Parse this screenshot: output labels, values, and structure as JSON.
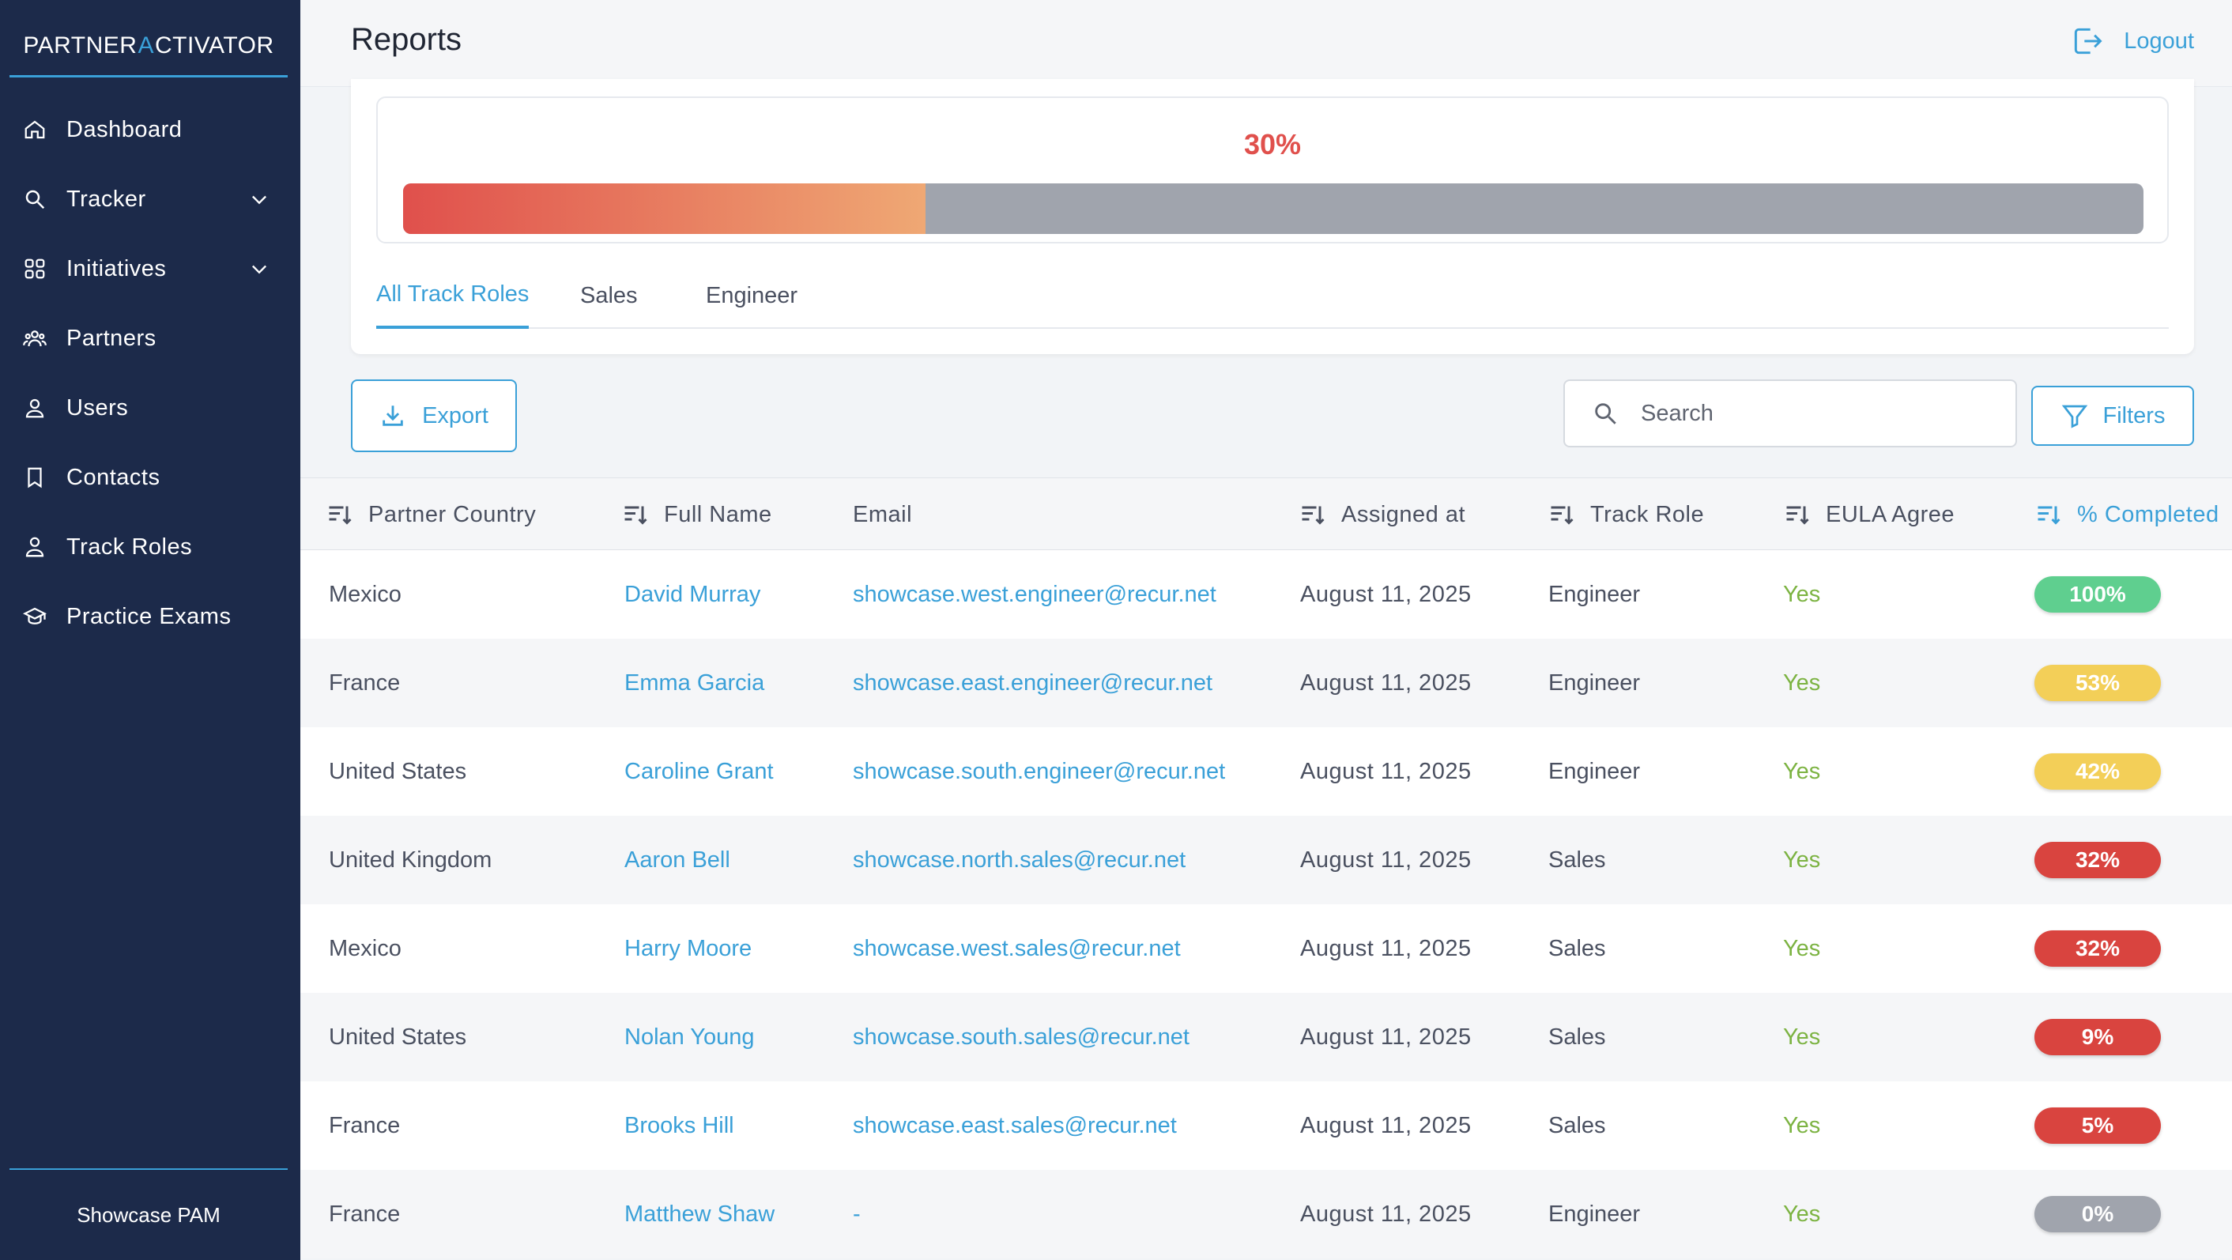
{
  "sidebar": {
    "brand": {
      "part1": "PARTNER ",
      "rocket_letter": "A",
      "part2": "CTIVATOR"
    },
    "items": [
      {
        "label": "Dashboard",
        "icon": "home-icon",
        "expandable": false
      },
      {
        "label": "Tracker",
        "icon": "search-icon",
        "expandable": true
      },
      {
        "label": "Initiatives",
        "icon": "grid-icon",
        "expandable": true
      },
      {
        "label": "Partners",
        "icon": "group-icon",
        "expandable": false
      },
      {
        "label": "Users",
        "icon": "user-icon",
        "expandable": false
      },
      {
        "label": "Contacts",
        "icon": "bookmark-icon",
        "expandable": false
      },
      {
        "label": "Track Roles",
        "icon": "user-roles-icon",
        "expandable": false
      },
      {
        "label": "Practice Exams",
        "icon": "graduation-cap-icon",
        "expandable": false
      }
    ],
    "footer": "Showcase PAM"
  },
  "header": {
    "title": "Reports",
    "logout_label": "Logout"
  },
  "progress": {
    "label": "30%",
    "value": 0.3
  },
  "tabs": [
    {
      "label": "All Track Roles",
      "active": true
    },
    {
      "label": "Sales",
      "active": false
    },
    {
      "label": "Engineer",
      "active": false
    }
  ],
  "toolbar": {
    "export_label": "Export",
    "search_placeholder": "Search",
    "filters_label": "Filters"
  },
  "table": {
    "columns": [
      {
        "label": "Partner Country",
        "sortable": true
      },
      {
        "label": "Full Name",
        "sortable": true
      },
      {
        "label": "Email",
        "sortable": false
      },
      {
        "label": "Assigned at",
        "sortable": true
      },
      {
        "label": "Track Role",
        "sortable": true
      },
      {
        "label": "EULA Agree",
        "sortable": true
      },
      {
        "label": "% Completed",
        "sortable": true
      }
    ],
    "rows": [
      {
        "country": "Mexico",
        "name": "David Murray",
        "email": "showcase.west.engineer@recur.net",
        "assigned": "August 11, 2025",
        "role": "Engineer",
        "eula": "Yes",
        "completed": "100%",
        "status_color": "#5fcf8f"
      },
      {
        "country": "France",
        "name": "Emma Garcia",
        "email": "showcase.east.engineer@recur.net",
        "assigned": "August 11, 2025",
        "role": "Engineer",
        "eula": "Yes",
        "completed": "53%",
        "status_color": "#f3cf58"
      },
      {
        "country": "United States",
        "name": "Caroline Grant",
        "email": "showcase.south.engineer@recur.net",
        "assigned": "August 11, 2025",
        "role": "Engineer",
        "eula": "Yes",
        "completed": "42%",
        "status_color": "#f3cf58"
      },
      {
        "country": "United Kingdom",
        "name": "Aaron Bell",
        "email": "showcase.north.sales@recur.net",
        "assigned": "August 11, 2025",
        "role": "Sales",
        "eula": "Yes",
        "completed": "32%",
        "status_color": "#d9443f"
      },
      {
        "country": "Mexico",
        "name": "Harry Moore",
        "email": "showcase.west.sales@recur.net",
        "assigned": "August 11, 2025",
        "role": "Sales",
        "eula": "Yes",
        "completed": "32%",
        "status_color": "#d9443f"
      },
      {
        "country": "United States",
        "name": "Nolan Young",
        "email": "showcase.south.sales@recur.net",
        "assigned": "August 11, 2025",
        "role": "Sales",
        "eula": "Yes",
        "completed": "9%",
        "status_color": "#d9443f"
      },
      {
        "country": "France",
        "name": "Brooks Hill",
        "email": "showcase.east.sales@recur.net",
        "assigned": "August 11, 2025",
        "role": "Sales",
        "eula": "Yes",
        "completed": "5%",
        "status_color": "#d9443f"
      },
      {
        "country": "France",
        "name": "Matthew Shaw",
        "email": "-",
        "assigned": "August 11, 2025",
        "role": "Engineer",
        "eula": "Yes",
        "completed": "0%",
        "status_color": "#a0a4ad"
      }
    ]
  },
  "colors": {
    "sidebar_bg": "#1c2a4a",
    "accent": "#3aa0d8",
    "danger": "#e0504c",
    "success_text": "#7cb342"
  }
}
